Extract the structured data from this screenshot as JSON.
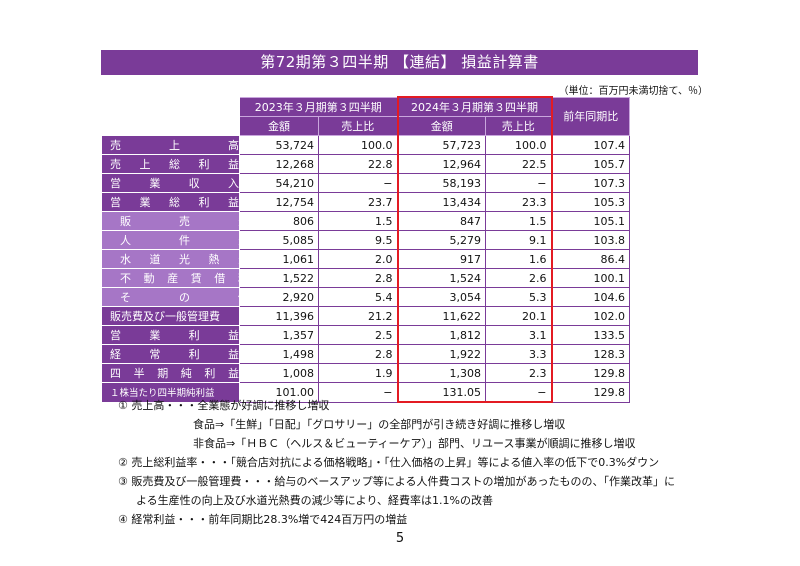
{
  "title": "第72期第３四半期 【連結】 損益計算書",
  "unit_note": "（単位：百万円未満切捨て、％）",
  "headers": {
    "period_prev": "2023年３月期第３四半期",
    "period_curr": "2024年３月期第３四半期",
    "yoy": "前年同期比",
    "amount": "金額",
    "ratio": "売上比"
  },
  "rows": [
    {
      "label": "売上高",
      "chars": [
        "売",
        "上",
        "高"
      ],
      "style": "main",
      "prev_amount": "53,724",
      "prev_ratio": "100.0",
      "curr_amount": "57,723",
      "curr_ratio": "100.0",
      "yoy": "107.4"
    },
    {
      "label": "売上総利益",
      "chars": [
        "売",
        "上",
        "総",
        "利",
        "益"
      ],
      "style": "main",
      "prev_amount": "12,268",
      "prev_ratio": "22.8",
      "curr_amount": "12,964",
      "curr_ratio": "22.5",
      "yoy": "105.7"
    },
    {
      "label": "営業収入",
      "chars": [
        "営",
        "業",
        "収",
        "入"
      ],
      "style": "main",
      "prev_amount": "54,210",
      "prev_ratio": "−",
      "curr_amount": "58,193",
      "curr_ratio": "−",
      "yoy": "107.3"
    },
    {
      "label": "営業総利益",
      "chars": [
        "営",
        "業",
        "総",
        "利",
        "益"
      ],
      "style": "main",
      "prev_amount": "12,754",
      "prev_ratio": "23.7",
      "curr_amount": "13,434",
      "curr_ratio": "23.3",
      "yoy": "105.3"
    },
    {
      "label": "販売費",
      "chars": [
        "販",
        "売",
        "費"
      ],
      "style": "sub",
      "prev_amount": "806",
      "prev_ratio": "1.5",
      "curr_amount": "847",
      "curr_ratio": "1.5",
      "yoy": "105.1"
    },
    {
      "label": "人件費",
      "chars": [
        "人",
        "件",
        "費"
      ],
      "style": "sub",
      "prev_amount": "5,085",
      "prev_ratio": "9.5",
      "curr_amount": "5,279",
      "curr_ratio": "9.1",
      "yoy": "103.8"
    },
    {
      "label": "水道光熱費",
      "chars": [
        "水",
        "道",
        "光",
        "熱",
        "費"
      ],
      "style": "sub",
      "prev_amount": "1,061",
      "prev_ratio": "2.0",
      "curr_amount": "917",
      "curr_ratio": "1.6",
      "yoy": "86.4"
    },
    {
      "label": "不動産賃借料",
      "chars": [
        "不",
        "動",
        "産",
        "賃",
        "借",
        "料"
      ],
      "style": "sub",
      "prev_amount": "1,522",
      "prev_ratio": "2.8",
      "curr_amount": "1,524",
      "curr_ratio": "2.6",
      "yoy": "100.1"
    },
    {
      "label": "その他",
      "chars": [
        "そ",
        "の",
        "他"
      ],
      "style": "sub",
      "prev_amount": "2,920",
      "prev_ratio": "5.4",
      "curr_amount": "3,054",
      "curr_ratio": "5.3",
      "yoy": "104.6"
    },
    {
      "label": "販売費及び一般管理費",
      "chars": [
        "販売費及び一般管理費"
      ],
      "style": "main",
      "prev_amount": "11,396",
      "prev_ratio": "21.2",
      "curr_amount": "11,622",
      "curr_ratio": "20.1",
      "yoy": "102.0"
    },
    {
      "label": "営業利益",
      "chars": [
        "営",
        "業",
        "利",
        "益"
      ],
      "style": "main",
      "prev_amount": "1,357",
      "prev_ratio": "2.5",
      "curr_amount": "1,812",
      "curr_ratio": "3.1",
      "yoy": "133.5"
    },
    {
      "label": "経常利益",
      "chars": [
        "経",
        "常",
        "利",
        "益"
      ],
      "style": "main",
      "prev_amount": "1,498",
      "prev_ratio": "2.8",
      "curr_amount": "1,922",
      "curr_ratio": "3.3",
      "yoy": "128.3"
    },
    {
      "label": "四半期純利益",
      "chars": [
        "四",
        "半",
        "期",
        "純",
        "利",
        "益"
      ],
      "style": "main",
      "prev_amount": "1,008",
      "prev_ratio": "1.9",
      "curr_amount": "1,308",
      "curr_ratio": "2.3",
      "yoy": "129.8"
    },
    {
      "label": "１株当たり四半期純利益",
      "chars": [
        "１株当たり四半期純利益"
      ],
      "style": "main-small",
      "prev_amount": "101.00",
      "prev_ratio": "−",
      "curr_amount": "131.05",
      "curr_ratio": "−",
      "yoy": "129.8"
    }
  ],
  "notes": [
    {
      "text": "① 売上高・・・全業態が好調に推移し増収",
      "indent": 0
    },
    {
      "text": "食品⇒「生鮮」「日配」「グロサリー」の全部門が引き続き好調に推移し増収",
      "indent": 1
    },
    {
      "text": "非食品⇒「ＨＢＣ（ヘルス＆ビューティーケア）」部門、リユース事業が順調に推移し増収",
      "indent": 1
    },
    {
      "text": "② 売上総利益率・・・「競合店対抗による価格戦略」・「仕入価格の上昇」等による値入率の低下で0.3%ダウン",
      "indent": 0
    },
    {
      "text": "③ 販売費及び一般管理費・・・給与のベースアップ等による人件費コストの増加があったものの、「作業改革」に",
      "indent": 0
    },
    {
      "text": "よる生産性の向上及び水道光熱費の減少等により、経費率は1.1%の改善",
      "indent": 2
    },
    {
      "text": "④ 経常利益・・・前年同期比28.3%増で424百万円の増益",
      "indent": 0
    }
  ],
  "page_number": "5",
  "colors": {
    "header": "#7a3b98",
    "sub_label": "#a676c6",
    "highlight": "#e31b23"
  }
}
